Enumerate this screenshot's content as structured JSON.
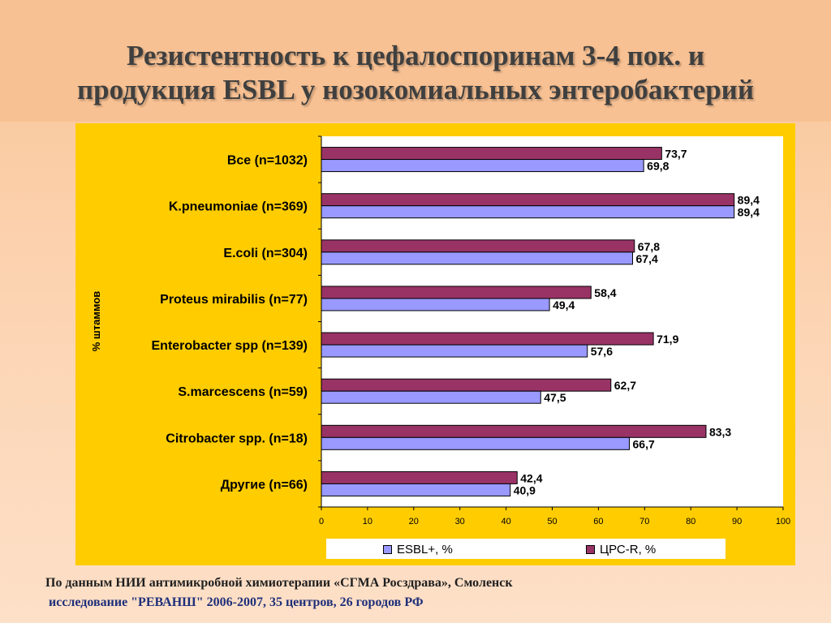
{
  "title": {
    "line1": "Резистентность к цефалоспоринам 3-4 пок.  и",
    "line2": "продукция ESBL у  нозокомиальных  энтеробактерий"
  },
  "footer": {
    "line1": "По данным НИИ антимикробной химиотерапии «СГМА Росздрава», Смоленск",
    "line2": "исследование \"РЕВАНШ\" 2006-2007, 35 центров, 26 городов РФ"
  },
  "colors": {
    "esbl_fill": "#9999ff",
    "cpc_fill": "#993366",
    "panel": "#ffcc00"
  },
  "chart_data": {
    "type": "bar",
    "orientation": "horizontal",
    "categories": [
      "Все (n=1032)",
      "K.pneumoniae (n=369)",
      "E.coli (n=304)",
      "Proteus mirabilis (n=77)",
      "Enterobacter spp (n=139)",
      "S.marcescens (n=59)",
      "Citrobacter spp. (n=18)",
      "Другие (n=66)"
    ],
    "series": [
      {
        "name": "ЦРС-R, %",
        "color": "#993366",
        "values": [
          73.7,
          89.4,
          67.8,
          58.4,
          71.9,
          62.7,
          83.3,
          42.4
        ],
        "labels": [
          "73,7",
          "89,4",
          "67,8",
          "58,4",
          "71,9",
          "62,7",
          "83,3",
          "42,4"
        ]
      },
      {
        "name": "ESBL+, %",
        "color": "#9999ff",
        "values": [
          69.8,
          89.4,
          67.4,
          49.4,
          57.6,
          47.5,
          66.7,
          40.9
        ],
        "labels": [
          "69,8",
          "89,4",
          "67,4",
          "49,4",
          "57,6",
          "47,5",
          "66,7",
          "40,9"
        ]
      }
    ],
    "xlim": [
      0,
      100
    ],
    "xticks": [
      "0",
      "10",
      "20",
      "30",
      "40",
      "50",
      "60",
      "70",
      "80",
      "90",
      "100"
    ],
    "ylabel": "% штаммов",
    "legend": [
      "ESBL+, %",
      "ЦРС-R, %"
    ],
    "legend_position": "bottom",
    "grid": false
  }
}
